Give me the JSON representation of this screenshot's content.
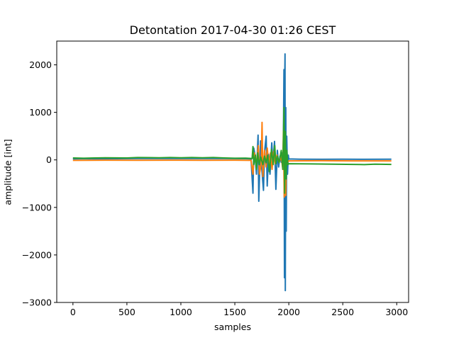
{
  "chart_data": {
    "type": "line",
    "title": "Detontation 2017-04-30 01:26 CEST",
    "xlabel": "samples",
    "ylabel": "amplitude [int]",
    "xlim": [
      -150,
      3110
    ],
    "ylim": [
      -3000,
      2500
    ],
    "xticks": [
      0,
      500,
      1000,
      1500,
      2000,
      2500,
      3000
    ],
    "yticks": [
      -3000,
      -2000,
      -1000,
      0,
      1000,
      2000
    ],
    "grid": false,
    "legend": "none",
    "series": [
      {
        "color": "#1f77b4",
        "points": [
          [
            0,
            20
          ],
          [
            100,
            25
          ],
          [
            200,
            22
          ],
          [
            400,
            25
          ],
          [
            600,
            30
          ],
          [
            800,
            28
          ],
          [
            1000,
            30
          ],
          [
            1200,
            28
          ],
          [
            1400,
            30
          ],
          [
            1600,
            25
          ],
          [
            1650,
            20
          ],
          [
            1668,
            -700
          ],
          [
            1675,
            250
          ],
          [
            1688,
            100
          ],
          [
            1700,
            -300
          ],
          [
            1715,
            520
          ],
          [
            1722,
            -870
          ],
          [
            1738,
            400
          ],
          [
            1750,
            -200
          ],
          [
            1765,
            -640
          ],
          [
            1775,
            160
          ],
          [
            1790,
            500
          ],
          [
            1800,
            -550
          ],
          [
            1812,
            120
          ],
          [
            1826,
            -300
          ],
          [
            1842,
            360
          ],
          [
            1852,
            -100
          ],
          [
            1868,
            390
          ],
          [
            1880,
            -620
          ],
          [
            1894,
            200
          ],
          [
            1906,
            -150
          ],
          [
            1918,
            80
          ],
          [
            1930,
            -50
          ],
          [
            1942,
            150
          ],
          [
            1948,
            -100
          ],
          [
            1955,
            1900
          ],
          [
            1960,
            -2480
          ],
          [
            1962,
            1550
          ],
          [
            1965,
            2230
          ],
          [
            1968,
            -2750
          ],
          [
            1972,
            1100
          ],
          [
            1976,
            -1500
          ],
          [
            1981,
            500
          ],
          [
            1988,
            -300
          ],
          [
            1995,
            100
          ],
          [
            2000,
            20
          ],
          [
            2100,
            15
          ],
          [
            2300,
            12
          ],
          [
            2500,
            15
          ],
          [
            2700,
            12
          ],
          [
            2950,
            15
          ]
        ]
      },
      {
        "color": "#ff7f0e",
        "points": [
          [
            0,
            -10
          ],
          [
            300,
            -5
          ],
          [
            600,
            -8
          ],
          [
            900,
            -5
          ],
          [
            1200,
            -8
          ],
          [
            1500,
            -5
          ],
          [
            1650,
            -10
          ],
          [
            1668,
            -300
          ],
          [
            1680,
            150
          ],
          [
            1700,
            -100
          ],
          [
            1718,
            300
          ],
          [
            1728,
            -300
          ],
          [
            1745,
            -80
          ],
          [
            1752,
            790
          ],
          [
            1760,
            -350
          ],
          [
            1775,
            200
          ],
          [
            1790,
            -150
          ],
          [
            1800,
            250
          ],
          [
            1815,
            -100
          ],
          [
            1830,
            150
          ],
          [
            1845,
            -200
          ],
          [
            1860,
            180
          ],
          [
            1875,
            -80
          ],
          [
            1890,
            100
          ],
          [
            1910,
            -50
          ],
          [
            1930,
            60
          ],
          [
            1945,
            -200
          ],
          [
            1950,
            600
          ],
          [
            1958,
            -780
          ],
          [
            1964,
            400
          ],
          [
            1972,
            -750
          ],
          [
            1978,
            150
          ],
          [
            1985,
            -60
          ],
          [
            2000,
            -20
          ],
          [
            2300,
            -18
          ],
          [
            2600,
            -20
          ],
          [
            2950,
            -20
          ]
        ]
      },
      {
        "color": "#2ca02c",
        "points": [
          [
            0,
            40
          ],
          [
            100,
            35
          ],
          [
            200,
            40
          ],
          [
            300,
            45
          ],
          [
            400,
            42
          ],
          [
            500,
            40
          ],
          [
            600,
            50
          ],
          [
            700,
            48
          ],
          [
            800,
            45
          ],
          [
            900,
            50
          ],
          [
            1000,
            45
          ],
          [
            1100,
            50
          ],
          [
            1200,
            45
          ],
          [
            1300,
            50
          ],
          [
            1400,
            40
          ],
          [
            1500,
            35
          ],
          [
            1600,
            38
          ],
          [
            1660,
            30
          ],
          [
            1668,
            280
          ],
          [
            1676,
            -100
          ],
          [
            1690,
            100
          ],
          [
            1700,
            -200
          ],
          [
            1712,
            150
          ],
          [
            1725,
            -100
          ],
          [
            1740,
            60
          ],
          [
            1760,
            -100
          ],
          [
            1775,
            80
          ],
          [
            1790,
            -60
          ],
          [
            1805,
            100
          ],
          [
            1820,
            -250
          ],
          [
            1840,
            220
          ],
          [
            1855,
            -100
          ],
          [
            1870,
            300
          ],
          [
            1880,
            -80
          ],
          [
            1895,
            80
          ],
          [
            1910,
            -60
          ],
          [
            1930,
            200
          ],
          [
            1945,
            -200
          ],
          [
            1955,
            1100
          ],
          [
            1962,
            -700
          ],
          [
            1968,
            600
          ],
          [
            1975,
            -400
          ],
          [
            1982,
            200
          ],
          [
            1990,
            -100
          ],
          [
            2000,
            -80
          ],
          [
            2200,
            -85
          ],
          [
            2400,
            -90
          ],
          [
            2600,
            -95
          ],
          [
            2700,
            -100
          ],
          [
            2800,
            -90
          ],
          [
            2950,
            -95
          ]
        ]
      }
    ]
  }
}
